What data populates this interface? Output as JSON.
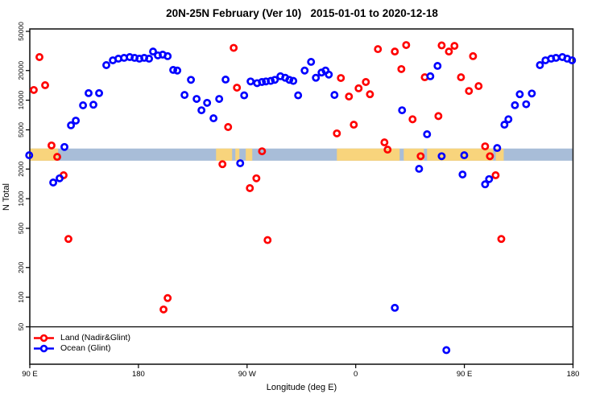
{
  "title": "20N-25N February (Ver 10)   2015-01-01 to 2020-12-18",
  "legend": {
    "items": [
      {
        "label": "Land (Nadir&Glint)",
        "color": "#ff0000"
      },
      {
        "label": "Ocean (Glint)",
        "color": "#0000ff"
      }
    ]
  },
  "chart_data": {
    "type": "scatter",
    "title": "20N-25N February (Ver 10)   2015-01-01 to 2020-12-18",
    "xlabel": "Longitude (deg E)",
    "ylabel": "N Total",
    "x_axis": {
      "note": "display axis runs eastward from 90E, wrapping past the dateline and prime meridian (90E to 180 covers 450 deg)",
      "range_deg": [
        90,
        540
      ],
      "ticks": [
        {
          "deg": 90,
          "label": "90 E"
        },
        {
          "deg": 180,
          "label": "180"
        },
        {
          "deg": 270,
          "label": "90 W"
        },
        {
          "deg": 360,
          "label": "0"
        },
        {
          "deg": 450,
          "label": "90 E"
        },
        {
          "deg": 540,
          "label": "180"
        }
      ]
    },
    "y_axis": {
      "scale": "log",
      "tick_values": [
        50000,
        20000,
        10000,
        5000,
        2000,
        1000,
        500,
        200,
        100,
        50
      ],
      "top_value": 50000,
      "grid": false
    },
    "reference_line_n": 50,
    "surface_band": {
      "comment": "horizontal strip marking land(orange)/ocean(blue) longitudes",
      "n_range": [
        2430,
        3230
      ],
      "ocean_color": "#a8bdd8",
      "land_color": "#f8d47c",
      "land_segments_deg": [
        [
          90,
          113.4
        ],
        [
          244.3,
          257.6
        ],
        [
          260.3,
          263.6
        ],
        [
          268.9,
          274.3
        ],
        [
          344.4,
          396.4
        ],
        [
          399.8,
          416.5
        ],
        [
          419.1,
          473.9
        ],
        [
          476.0,
          482.6
        ]
      ]
    },
    "series": [
      {
        "name": "Land (Nadir&Glint)",
        "color": "#ff0000",
        "points": [
          [
            98.0,
            27400
          ],
          [
            93.3,
            12700
          ],
          [
            102.7,
            14200
          ],
          [
            108.0,
            3470
          ],
          [
            112.7,
            2660
          ],
          [
            118.0,
            1730
          ],
          [
            122.0,
            390
          ],
          [
            204.2,
            98
          ],
          [
            200.8,
            75
          ],
          [
            258.9,
            34000
          ],
          [
            261.6,
            13400
          ],
          [
            254.3,
            5340
          ],
          [
            249.6,
            2240
          ],
          [
            282.4,
            3030
          ],
          [
            277.7,
            1610
          ],
          [
            272.3,
            1280
          ],
          [
            287.0,
            380
          ],
          [
            347.7,
            16800
          ],
          [
            362.4,
            13200
          ],
          [
            368.4,
            15300
          ],
          [
            354.4,
            10900
          ],
          [
            371.8,
            11500
          ],
          [
            344.4,
            4600
          ],
          [
            358.4,
            5640
          ],
          [
            383.8,
            3730
          ],
          [
            386.4,
            3150
          ],
          [
            378.4,
            33000
          ],
          [
            392.4,
            31200
          ],
          [
            401.8,
            36300
          ],
          [
            431.2,
            36000
          ],
          [
            437.2,
            31200
          ],
          [
            441.8,
            35600
          ],
          [
            457.2,
            28000
          ],
          [
            397.8,
            20700
          ],
          [
            417.2,
            17100
          ],
          [
            447.2,
            17100
          ],
          [
            453.8,
            12400
          ],
          [
            461.8,
            13900
          ],
          [
            407.1,
            6400
          ],
          [
            428.5,
            6900
          ],
          [
            467.2,
            3400
          ],
          [
            413.8,
            2700
          ],
          [
            471.2,
            2700
          ],
          [
            475.9,
            1730
          ],
          [
            480.6,
            390
          ]
        ]
      },
      {
        "name": "Ocean (Glint)",
        "color": "#0000ff",
        "points": [
          [
            89.5,
            2760
          ],
          [
            118.7,
            3350
          ],
          [
            114.7,
            1610
          ],
          [
            109.4,
            1460
          ],
          [
            124.1,
            5560
          ],
          [
            128.1,
            6200
          ],
          [
            134.1,
            8870
          ],
          [
            142.7,
            9000
          ],
          [
            138.7,
            11800
          ],
          [
            147.4,
            11800
          ],
          [
            153.4,
            22700
          ],
          [
            158.8,
            25400
          ],
          [
            163.4,
            26400
          ],
          [
            168.1,
            26900
          ],
          [
            172.8,
            27400
          ],
          [
            176.8,
            26900
          ],
          [
            180.8,
            26400
          ],
          [
            184.8,
            26900
          ],
          [
            188.8,
            26400
          ],
          [
            192.1,
            31200
          ],
          [
            196.1,
            28500
          ],
          [
            200.1,
            29000
          ],
          [
            204.2,
            28000
          ],
          [
            208.8,
            20300
          ],
          [
            212.2,
            20000
          ],
          [
            218.2,
            11300
          ],
          [
            223.5,
            16100
          ],
          [
            228.2,
            10300
          ],
          [
            236.9,
            9400
          ],
          [
            232.2,
            7900
          ],
          [
            242.2,
            6550
          ],
          [
            246.9,
            10300
          ],
          [
            252.2,
            16200
          ],
          [
            264.3,
            2290
          ],
          [
            267.6,
            11200
          ],
          [
            272.9,
            15500
          ],
          [
            278.3,
            14900
          ],
          [
            282.3,
            15300
          ],
          [
            285.6,
            15500
          ],
          [
            289.6,
            15700
          ],
          [
            293.0,
            16100
          ],
          [
            297.6,
            17500
          ],
          [
            301.6,
            16900
          ],
          [
            305.0,
            16100
          ],
          [
            308.3,
            15700
          ],
          [
            312.3,
            11200
          ],
          [
            317.7,
            20000
          ],
          [
            323.0,
            24500
          ],
          [
            327.0,
            16900
          ],
          [
            331.7,
            19100
          ],
          [
            335.0,
            20000
          ],
          [
            337.7,
            18200
          ],
          [
            342.4,
            11300
          ],
          [
            392.4,
            78
          ],
          [
            435.1,
            29
          ],
          [
            398.4,
            7900
          ],
          [
            419.1,
            4510
          ],
          [
            421.8,
            17500
          ],
          [
            427.8,
            22300
          ],
          [
            431.2,
            2700
          ],
          [
            449.9,
            2760
          ],
          [
            412.5,
            2010
          ],
          [
            448.5,
            1760
          ],
          [
            467.2,
            1400
          ],
          [
            470.5,
            1580
          ],
          [
            477.2,
            3270
          ],
          [
            483.2,
            5640
          ],
          [
            486.5,
            6400
          ],
          [
            491.9,
            8900
          ],
          [
            501.2,
            9100
          ],
          [
            495.9,
            11500
          ],
          [
            505.9,
            11700
          ],
          [
            512.6,
            22700
          ],
          [
            517.2,
            25400
          ],
          [
            521.9,
            26400
          ],
          [
            525.9,
            26900
          ],
          [
            531.2,
            27400
          ],
          [
            535.2,
            26400
          ],
          [
            539.2,
            25400
          ]
        ]
      }
    ],
    "style": {
      "marker": "open-circle",
      "marker_radius_px": 3.6,
      "marker_stroke_px": 2.7,
      "frame_color": "#1a1a1a"
    }
  }
}
